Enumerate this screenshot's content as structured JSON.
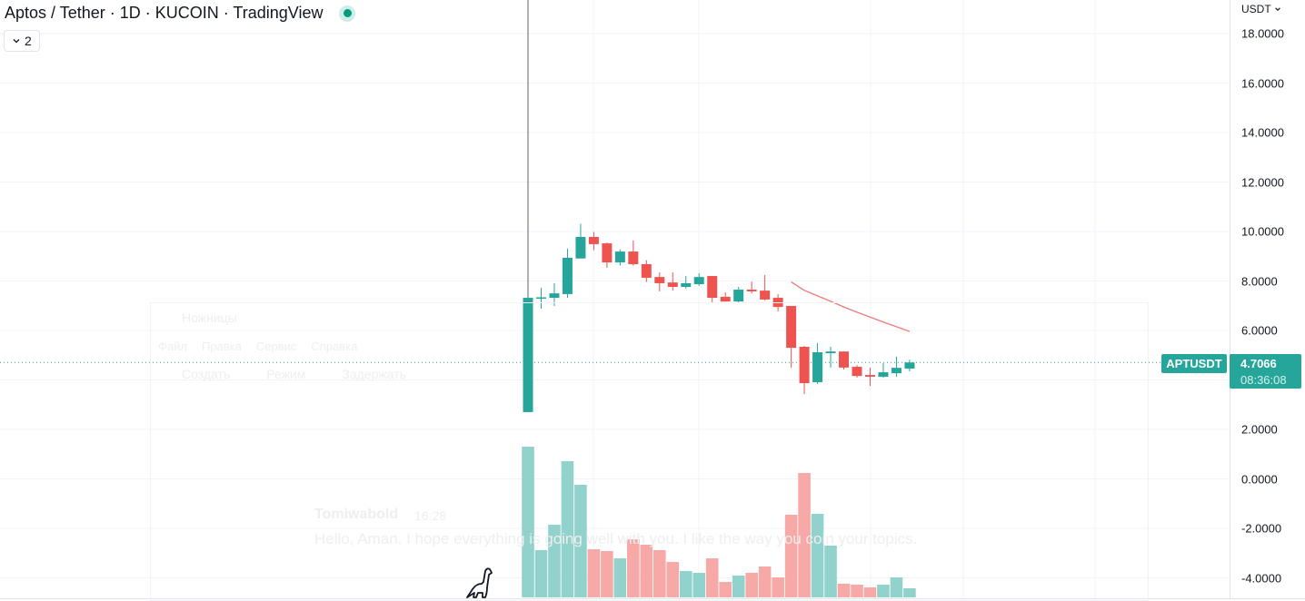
{
  "header": {
    "title": "Aptos / Tether · 1D · KUCOIN · TradingView",
    "collapse_label": "2",
    "currency": "USDT"
  },
  "price_axis": {
    "symbol_label": "APTUSDT",
    "last_price": "4.7066",
    "countdown": "08:36:08"
  },
  "overlay_window": {
    "title": "Ножницы",
    "menu": [
      "Файл",
      "Правка",
      "Сервис",
      "Справка"
    ],
    "toolbar": [
      "Создать",
      "Режим",
      "Задержать"
    ],
    "author": "Tomiwabold",
    "time": "16:28",
    "message": "Hello, Aman. I hope everything is going well with you. I like the way you coin your topics."
  },
  "colors": {
    "up": "#26a69a",
    "down": "#ef5350",
    "up_volume": "#92d2cc",
    "down_volume": "#f7a9a7",
    "ma": "#f07a78",
    "grid": "#f0f3fa"
  },
  "icons": {
    "live": "status-dot-icon",
    "collapse": "chevron-down-icon",
    "currency": "chevron-down-icon",
    "logo": "dinosaur-icon"
  },
  "chart_data": {
    "type": "candlestick",
    "ylim": [
      -4.6,
      19.36
    ],
    "yticks": [
      "18.0000",
      "16.0000",
      "14.0000",
      "12.0000",
      "10.0000",
      "8.0000",
      "6.0000",
      "2.0000",
      "0.0000",
      "-2.0000",
      "-4.0000"
    ],
    "ytick_values": [
      18,
      16,
      14,
      12,
      10,
      8,
      6,
      2,
      0,
      -2,
      -4
    ],
    "grid": true,
    "last_price": 4.7066,
    "ohlc": [
      [
        2.7,
        20.0,
        2.7,
        7.32
      ],
      [
        7.29,
        7.72,
        6.88,
        7.34
      ],
      [
        7.32,
        7.91,
        6.99,
        7.5
      ],
      [
        7.47,
        9.31,
        7.32,
        8.94
      ],
      [
        8.91,
        10.31,
        8.91,
        9.78
      ],
      [
        9.78,
        9.98,
        9.24,
        9.49
      ],
      [
        9.52,
        9.56,
        8.53,
        8.75
      ],
      [
        8.75,
        9.28,
        8.62,
        9.19
      ],
      [
        9.19,
        9.64,
        8.62,
        8.68
      ],
      [
        8.68,
        8.84,
        7.96,
        8.13
      ],
      [
        8.16,
        8.35,
        7.58,
        7.91
      ],
      [
        7.94,
        8.35,
        7.61,
        7.76
      ],
      [
        7.76,
        8.2,
        7.69,
        7.91
      ],
      [
        7.87,
        8.31,
        7.8,
        8.16
      ],
      [
        8.2,
        8.2,
        7.14,
        7.32
      ],
      [
        7.36,
        7.54,
        7.17,
        7.17
      ],
      [
        7.17,
        7.76,
        7.14,
        7.65
      ],
      [
        7.65,
        7.98,
        7.5,
        7.58
      ],
      [
        7.61,
        8.24,
        7.21,
        7.25
      ],
      [
        7.32,
        7.47,
        6.77,
        6.95
      ],
      [
        6.99,
        6.99,
        4.5,
        5.3
      ],
      [
        5.34,
        5.38,
        3.43,
        3.87
      ],
      [
        3.91,
        5.49,
        3.83,
        5.12
      ],
      [
        5.08,
        5.34,
        4.5,
        5.15
      ],
      [
        5.15,
        5.15,
        4.42,
        4.5
      ],
      [
        4.53,
        4.6,
        4.09,
        4.16
      ],
      [
        4.2,
        4.5,
        3.76,
        4.13
      ],
      [
        4.13,
        4.68,
        4.09,
        4.31
      ],
      [
        4.27,
        4.94,
        4.13,
        4.49
      ],
      [
        4.46,
        4.82,
        4.35,
        4.7066
      ]
    ],
    "volume_relative": [
      166,
      52,
      80,
      150,
      124,
      53,
      51,
      43,
      64,
      58,
      52,
      39,
      29,
      27,
      43,
      17,
      24,
      27,
      34,
      22,
      91,
      137,
      92,
      57,
      15,
      14,
      11,
      14,
      22,
      10
    ],
    "moving_average": {
      "start_index": 20,
      "values": [
        7.96,
        7.62,
        7.4,
        7.18,
        6.95,
        6.74,
        6.54,
        6.34,
        6.15,
        5.96
      ]
    }
  }
}
